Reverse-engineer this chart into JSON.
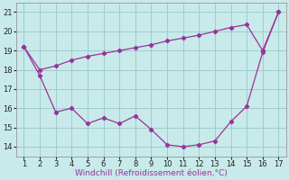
{
  "x": [
    1,
    2,
    3,
    4,
    5,
    6,
    7,
    8,
    9,
    10,
    11,
    12,
    13,
    14,
    15,
    16,
    17
  ],
  "y_curve": [
    19.2,
    17.7,
    15.8,
    16.0,
    15.2,
    15.5,
    15.2,
    15.6,
    14.9,
    14.1,
    14.0,
    14.1,
    14.3,
    15.3,
    16.1,
    18.9,
    21.0
  ],
  "y_line": [
    19.2,
    18.0,
    18.2,
    18.5,
    18.7,
    18.85,
    19.0,
    19.15,
    19.3,
    19.5,
    19.65,
    19.8,
    20.0,
    20.2,
    20.35,
    19.0,
    21.0
  ],
  "line_color": "#993399",
  "bg_color": "#c8eaea",
  "grid_color": "#a0cccc",
  "xlabel": "Windchill (Refroidissement éolien,°C)",
  "xlim": [
    0.5,
    17.5
  ],
  "ylim": [
    13.5,
    21.5
  ],
  "yticks": [
    14,
    15,
    16,
    17,
    18,
    19,
    20,
    21
  ],
  "xticks": [
    1,
    2,
    3,
    4,
    5,
    6,
    7,
    8,
    9,
    10,
    11,
    12,
    13,
    14,
    15,
    16,
    17
  ],
  "xlabel_fontsize": 6.5,
  "tick_fontsize": 6
}
